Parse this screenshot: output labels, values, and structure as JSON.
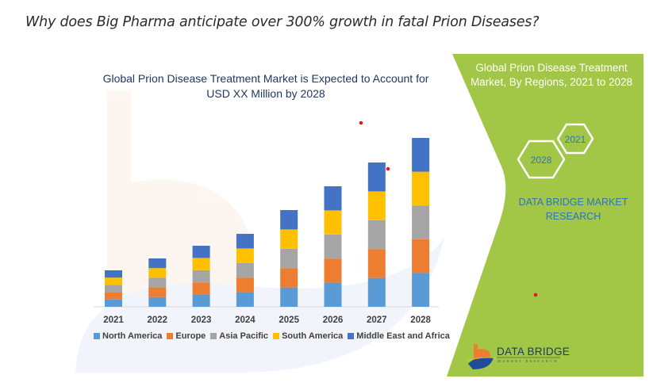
{
  "page": {
    "heading": "Why does Big Pharma anticipate over 300% growth in fatal Prion Diseases?"
  },
  "colors": {
    "north_america": "#5b9bd5",
    "europe": "#ed7d31",
    "asia_pacific": "#a5a5a5",
    "south_america": "#ffc000",
    "middle_east_africa": "#4472c4",
    "panel_green": "#a2c645",
    "dot_red": "#e8191a"
  },
  "chart_data": {
    "type": "bar",
    "stacked": true,
    "title": "Global Prion Disease Treatment Market is Expected to Account for USD XX Million by 2028",
    "title_line1": "Global Prion Disease Treatment Market is Expected to Account for",
    "title_line2": "USD XX Million by 2028",
    "xlabel": "",
    "ylabel": "",
    "units": "relative (no value axis shown)",
    "categories": [
      "2021",
      "2022",
      "2023",
      "2024",
      "2025",
      "2026",
      "2027",
      "2028"
    ],
    "series": [
      {
        "name": "North America",
        "values": [
          9.2,
          12.2,
          15.4,
          18.4,
          24.4,
          30.4,
          36.4,
          42.6
        ]
      },
      {
        "name": "Europe",
        "values": [
          9.2,
          12.2,
          15.4,
          18.4,
          24.4,
          30.4,
          36.4,
          42.6
        ]
      },
      {
        "name": "Asia Pacific",
        "values": [
          9.2,
          12.2,
          15.4,
          18.4,
          24.4,
          30.4,
          36.4,
          42.6
        ]
      },
      {
        "name": "South America",
        "values": [
          9.2,
          12.2,
          15.4,
          18.4,
          24.4,
          30.4,
          36.4,
          42.6
        ]
      },
      {
        "name": "Middle East and Africa",
        "values": [
          9.2,
          12.2,
          15.4,
          18.4,
          24.4,
          30.4,
          36.4,
          42.6
        ]
      }
    ],
    "ylim": [
      0,
      213
    ],
    "grid": false,
    "legend_position": "bottom"
  },
  "panel": {
    "title_line1": "Global Prion Disease Treatment",
    "title_line2": "Market, By Regions, 2021 to 2028",
    "hex_start": "2021",
    "hex_end": "2028",
    "brand_line1": "DATA BRIDGE MARKET",
    "brand_line2": "RESEARCH",
    "logo_text": "DATA BRIDGE",
    "logo_subtext": "MARKET RESEARCH"
  }
}
